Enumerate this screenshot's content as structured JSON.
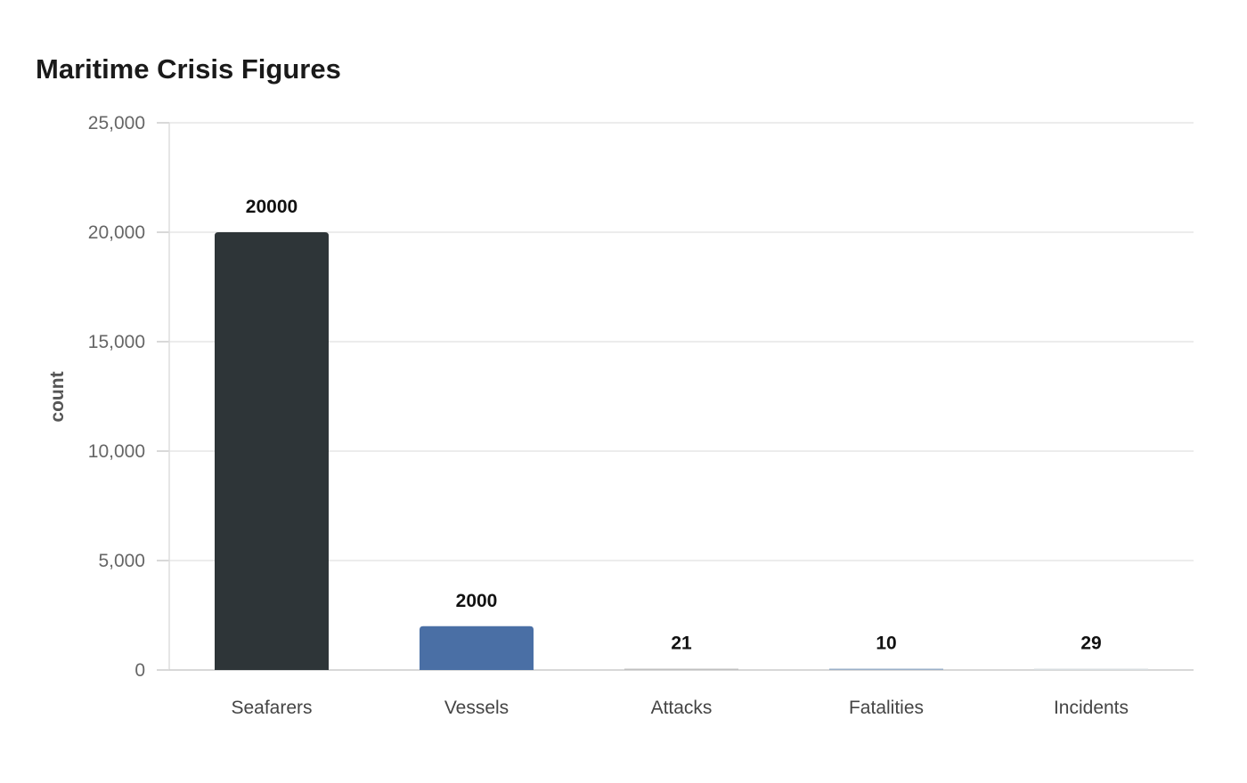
{
  "chart_data": {
    "type": "bar",
    "title": "Maritime Crisis Figures",
    "xlabel": "",
    "ylabel": "count",
    "categories": [
      "Seafarers",
      "Vessels",
      "Attacks",
      "Fatalities",
      "Incidents"
    ],
    "values": [
      20000,
      2000,
      21,
      10,
      29
    ],
    "value_labels": [
      "20000",
      "2000",
      "21",
      "10",
      "29"
    ],
    "colors": [
      "#2e3538",
      "#4a6fa5",
      "#c0c0c0",
      "#9bb0c8",
      "#d8dde0"
    ],
    "ylim": [
      0,
      25000
    ],
    "yticks": [
      0,
      5000,
      10000,
      15000,
      20000,
      25000
    ],
    "ytick_labels": [
      "0",
      "5,000",
      "10,000",
      "15,000",
      "20,000",
      "25,000"
    ],
    "grid": true,
    "legend": "none"
  }
}
